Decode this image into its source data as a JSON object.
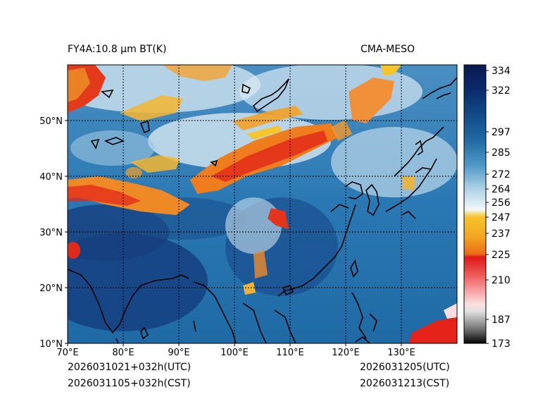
{
  "header": {
    "product": "FY4A:10.8 μm BT(K)",
    "model": "CMA-MESO"
  },
  "footer": {
    "init_utc": "2026031021+032h(UTC)",
    "init_cst": "2026031105+032h(CST)",
    "valid_utc": "2026031205(UTC)",
    "valid_cst": "2026031213(CST)"
  },
  "map": {
    "lon_ticks": [
      "70°E",
      "80°E",
      "90°E",
      "100°E",
      "110°E",
      "120°E",
      "130°E"
    ],
    "lat_ticks": [
      "10°N",
      "20°N",
      "30°N",
      "40°N",
      "50°N"
    ]
  },
  "colorbar": {
    "unit": "K",
    "labels": [
      "334",
      "322",
      "297",
      "285",
      "272",
      "264",
      "256",
      "247",
      "237",
      "225",
      "210",
      "187",
      "173"
    ]
  },
  "colors": {
    "deep_blue": "#0b2a6b",
    "mid_blue": "#1f6aa5",
    "light_blue": "#7fb6d8",
    "cloud_white": "#e8f2f8",
    "yellow": "#f5c52b",
    "orange": "#ee7a1a",
    "red": "#e01818"
  }
}
